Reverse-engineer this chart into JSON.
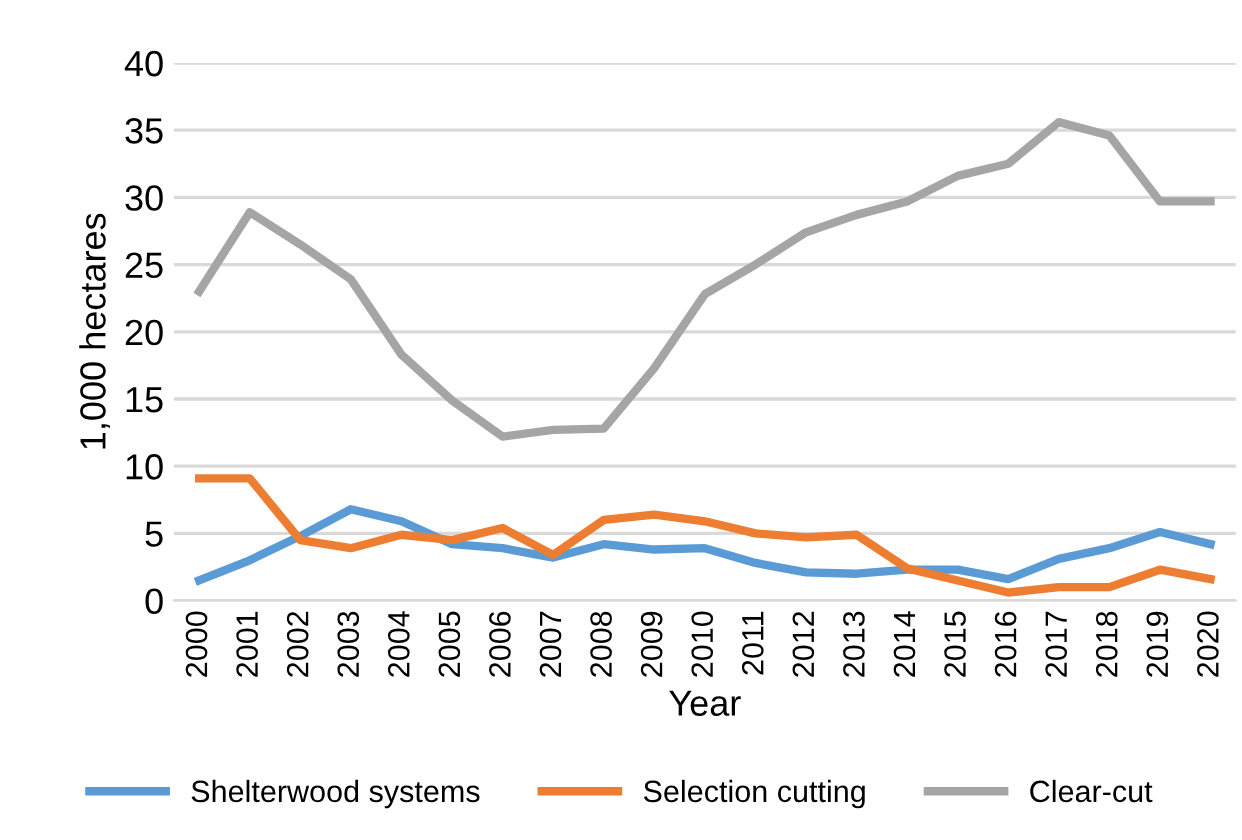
{
  "chart_data": {
    "type": "line",
    "xlabel": "Year",
    "ylabel": "1,000 hectares",
    "categories": [
      "2000",
      "2001",
      "2002",
      "2003",
      "2004",
      "2005",
      "2006",
      "2007",
      "2008",
      "2009",
      "2010",
      "2011",
      "2012",
      "2013",
      "2014",
      "2015",
      "2016",
      "2017",
      "2018",
      "2019",
      "2020"
    ],
    "series": [
      {
        "name": "Shelterwood systems",
        "color": "#5b9bd5",
        "values": [
          1.5,
          3.0,
          4.8,
          6.8,
          5.9,
          4.2,
          3.9,
          3.2,
          4.2,
          3.8,
          3.9,
          2.8,
          2.1,
          2.0,
          2.3,
          2.3,
          1.6,
          3.1,
          3.9,
          5.1,
          4.2
        ]
      },
      {
        "name": "Selection cutting",
        "color": "#ed7d31",
        "values": [
          9.1,
          9.1,
          4.5,
          3.9,
          4.9,
          4.5,
          5.4,
          3.4,
          6.0,
          6.4,
          5.9,
          5.0,
          4.7,
          4.9,
          2.4,
          1.5,
          0.6,
          1.0,
          1.0,
          2.3,
          1.6
        ]
      },
      {
        "name": "Clear-cut",
        "color": "#a5a5a5",
        "values": [
          23.0,
          28.9,
          26.5,
          23.9,
          18.3,
          14.9,
          12.2,
          12.7,
          12.8,
          17.3,
          22.8,
          25.0,
          27.4,
          28.7,
          29.7,
          31.6,
          32.5,
          35.6,
          34.6,
          29.7,
          29.7
        ]
      }
    ],
    "ylim": [
      0,
      40
    ],
    "yticks": [
      0,
      5,
      10,
      15,
      20,
      25,
      30,
      35,
      40
    ],
    "grid": "y",
    "legend": "bottom",
    "marker": "none",
    "line_style": "solid"
  }
}
